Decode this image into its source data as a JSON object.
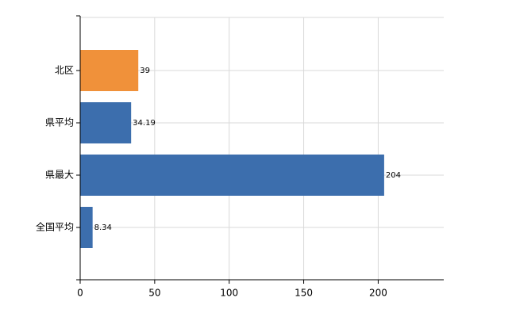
{
  "chart_data": {
    "type": "bar",
    "orientation": "horizontal",
    "categories": [
      "北区",
      "県平均",
      "県最大",
      "全国平均"
    ],
    "values": [
      39,
      34.19,
      204,
      8.34
    ],
    "colors": [
      "#f0913a",
      "#3c6ead",
      "#3c6ead",
      "#3c6ead"
    ],
    "xlim": [
      0,
      244
    ],
    "xticks": [
      0,
      50,
      100,
      150,
      200
    ],
    "grid": true
  }
}
